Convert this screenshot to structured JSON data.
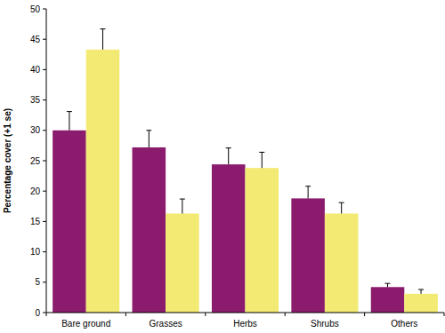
{
  "chart_data": {
    "type": "bar",
    "y_label": "Percentage cover (+1 se)",
    "categories": [
      "Bare ground",
      "Grasses",
      "Herbs",
      "Shrubs",
      "Others"
    ],
    "series": [
      {
        "color": "#8b1c6d",
        "values": [
          30.0,
          27.2,
          24.4,
          18.8,
          4.2
        ],
        "errors": [
          3.1,
          2.8,
          2.7,
          2.0,
          0.6
        ]
      },
      {
        "color": "#f2ea72",
        "values": [
          43.3,
          16.3,
          23.8,
          16.3,
          3.1
        ],
        "errors": [
          3.4,
          2.4,
          2.6,
          1.8,
          0.7
        ]
      }
    ],
    "ylim": [
      0,
      50
    ],
    "yticks": [
      0,
      5,
      10,
      15,
      20,
      25,
      30,
      35,
      40,
      45,
      50
    ],
    "grid": false
  }
}
